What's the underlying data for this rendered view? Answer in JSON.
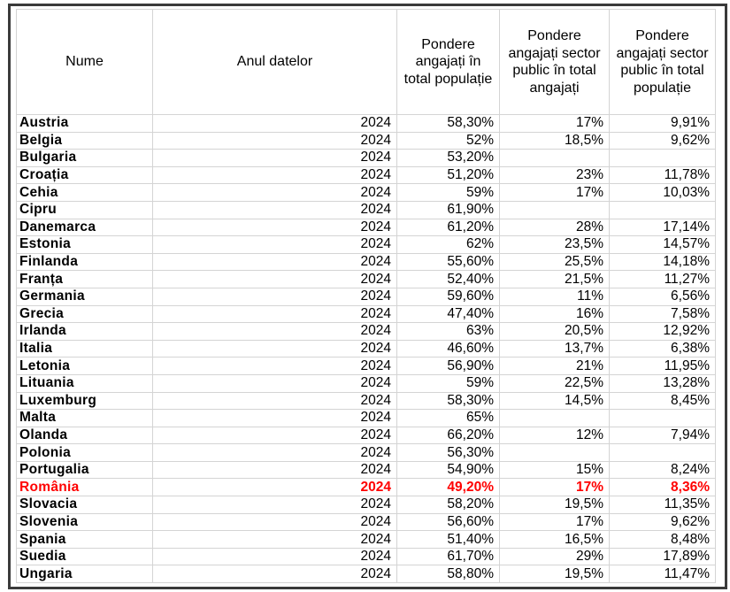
{
  "table": {
    "headers": [
      "Nume",
      "Anul datelor",
      "Pondere angajați în total populație",
      "Pondere angajați sector public în total angajați",
      "Pondere angajați sector public în total populație"
    ],
    "highlight_color": "#ff0000",
    "highlight_row": "România",
    "rows": [
      [
        "Austria",
        "2024",
        "58,30%",
        "17%",
        "9,91%"
      ],
      [
        "Belgia",
        "2024",
        "52%",
        "18,5%",
        "9,62%"
      ],
      [
        "Bulgaria",
        "2024",
        "53,20%",
        "",
        ""
      ],
      [
        "Croația",
        "2024",
        "51,20%",
        "23%",
        "11,78%"
      ],
      [
        "Cehia",
        "2024",
        "59%",
        "17%",
        "10,03%"
      ],
      [
        "Cipru",
        "2024",
        "61,90%",
        "",
        ""
      ],
      [
        "Danemarca",
        "2024",
        "61,20%",
        "28%",
        "17,14%"
      ],
      [
        "Estonia",
        "2024",
        "62%",
        "23,5%",
        "14,57%"
      ],
      [
        "Finlanda",
        "2024",
        "55,60%",
        "25,5%",
        "14,18%"
      ],
      [
        "Franța",
        "2024",
        "52,40%",
        "21,5%",
        "11,27%"
      ],
      [
        "Germania",
        "2024",
        "59,60%",
        "11%",
        "6,56%"
      ],
      [
        "Grecia",
        "2024",
        "47,40%",
        "16%",
        "7,58%"
      ],
      [
        "Irlanda",
        "2024",
        "63%",
        "20,5%",
        "12,92%"
      ],
      [
        "Italia",
        "2024",
        "46,60%",
        "13,7%",
        "6,38%"
      ],
      [
        "Letonia",
        "2024",
        "56,90%",
        "21%",
        "11,95%"
      ],
      [
        "Lituania",
        "2024",
        "59%",
        "22,5%",
        "13,28%"
      ],
      [
        "Luxemburg",
        "2024",
        "58,30%",
        "14,5%",
        "8,45%"
      ],
      [
        "Malta",
        "2024",
        "65%",
        "",
        ""
      ],
      [
        "Olanda",
        "2024",
        "66,20%",
        "12%",
        "7,94%"
      ],
      [
        "Polonia",
        "2024",
        "56,30%",
        "",
        ""
      ],
      [
        "Portugalia",
        "2024",
        "54,90%",
        "15%",
        "8,24%"
      ],
      [
        "România",
        "2024",
        "49,20%",
        "17%",
        "8,36%"
      ],
      [
        "Slovacia",
        "2024",
        "58,20%",
        "19,5%",
        "11,35%"
      ],
      [
        "Slovenia",
        "2024",
        "56,60%",
        "17%",
        "9,62%"
      ],
      [
        "Spania",
        "2024",
        "51,40%",
        "16,5%",
        "8,48%"
      ],
      [
        "Suedia",
        "2024",
        "61,70%",
        "29%",
        "17,89%"
      ],
      [
        "Ungaria",
        "2024",
        "58,80%",
        "19,5%",
        "11,47%"
      ]
    ]
  }
}
